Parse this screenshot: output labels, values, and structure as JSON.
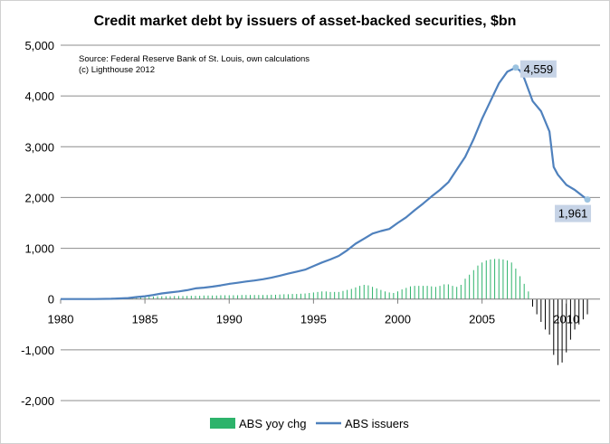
{
  "chart_data": {
    "type": "line",
    "title": "Credit market debt by issuers of asset-backed securities, $bn",
    "notes": [
      "Source: Federal Reserve Bank of St. Louis, own calculations",
      "(c) Lighthouse 2012"
    ],
    "xlabel": "",
    "ylabel": "",
    "xlim": [
      1980,
      2012
    ],
    "ylim": [
      -2000,
      5000
    ],
    "x_ticks": [
      "1980",
      "1985",
      "1990",
      "1995",
      "2000",
      "2005",
      "2010"
    ],
    "y_ticks": [
      "5,000",
      "4,000",
      "3,000",
      "2,000",
      "1,000",
      "0",
      "-1,000",
      "-2,000"
    ],
    "grid": "horizontal",
    "legend_position": "bottom",
    "colors": {
      "line": "#4f81bd",
      "bar_positive": "#2db36b",
      "bar_negative": "#000000",
      "callout_bg": "#c6d3e6",
      "marker": "#9cc3e0"
    },
    "series": [
      {
        "name": "ABS issuers",
        "type": "line",
        "x": [
          1980,
          1981,
          1982,
          1983,
          1984,
          1984.5,
          1985,
          1985.5,
          1986,
          1986.5,
          1987,
          1987.5,
          1988,
          1988.5,
          1989,
          1989.5,
          1990,
          1990.5,
          1991,
          1991.5,
          1992,
          1992.5,
          1993,
          1993.5,
          1994,
          1994.5,
          1995,
          1995.5,
          1996,
          1996.5,
          1997,
          1997.5,
          1998,
          1998.5,
          1999,
          1999.5,
          2000,
          2000.5,
          2001,
          2001.5,
          2002,
          2002.5,
          2003,
          2003.5,
          2004,
          2004.5,
          2005,
          2005.5,
          2006,
          2006.5,
          2007,
          2007.25,
          2007.5,
          2008,
          2008.5,
          2009,
          2009.25,
          2009.5,
          2010,
          2010.5,
          2011,
          2011.25
        ],
        "values": [
          0,
          0,
          0,
          5,
          20,
          40,
          55,
          80,
          110,
          130,
          150,
          175,
          210,
          225,
          245,
          270,
          300,
          320,
          345,
          365,
          390,
          420,
          460,
          500,
          540,
          580,
          650,
          720,
          780,
          850,
          960,
          1090,
          1190,
          1290,
          1340,
          1380,
          1500,
          1610,
          1750,
          1880,
          2020,
          2150,
          2300,
          2550,
          2800,
          3150,
          3550,
          3900,
          4250,
          4480,
          4559,
          4500,
          4350,
          3900,
          3700,
          3300,
          2600,
          2450,
          2250,
          2150,
          2020,
          1961
        ]
      },
      {
        "name": "ABS yoy chg",
        "type": "bar",
        "x": [
          1984.0,
          1984.25,
          1984.5,
          1984.75,
          1985.0,
          1985.25,
          1985.5,
          1985.75,
          1986.0,
          1986.25,
          1986.5,
          1986.75,
          1987.0,
          1987.25,
          1987.5,
          1987.75,
          1988.0,
          1988.25,
          1988.5,
          1988.75,
          1989.0,
          1989.25,
          1989.5,
          1989.75,
          1990.0,
          1990.25,
          1990.5,
          1990.75,
          1991.0,
          1991.25,
          1991.5,
          1991.75,
          1992.0,
          1992.25,
          1992.5,
          1992.75,
          1993.0,
          1993.25,
          1993.5,
          1993.75,
          1994.0,
          1994.25,
          1994.5,
          1994.75,
          1995.0,
          1995.25,
          1995.5,
          1995.75,
          1996.0,
          1996.25,
          1996.5,
          1996.75,
          1997.0,
          1997.25,
          1997.5,
          1997.75,
          1998.0,
          1998.25,
          1998.5,
          1998.75,
          1999.0,
          1999.25,
          1999.5,
          1999.75,
          2000.0,
          2000.25,
          2000.5,
          2000.75,
          2001.0,
          2001.25,
          2001.5,
          2001.75,
          2002.0,
          2002.25,
          2002.5,
          2002.75,
          2003.0,
          2003.25,
          2003.5,
          2003.75,
          2004.0,
          2004.25,
          2004.5,
          2004.75,
          2005.0,
          2005.25,
          2005.5,
          2005.75,
          2006.0,
          2006.25,
          2006.5,
          2006.75,
          2007.0,
          2007.25,
          2007.5,
          2007.75,
          2008.0,
          2008.25,
          2008.5,
          2008.75,
          2009.0,
          2009.25,
          2009.5,
          2009.75,
          2010.0,
          2010.25,
          2010.5,
          2010.75,
          2011.0,
          2011.25
        ],
        "values": [
          20,
          25,
          30,
          35,
          40,
          45,
          50,
          55,
          55,
          55,
          55,
          60,
          60,
          60,
          62,
          65,
          65,
          65,
          70,
          70,
          70,
          70,
          75,
          75,
          75,
          75,
          75,
          80,
          80,
          80,
          80,
          80,
          80,
          80,
          85,
          85,
          90,
          95,
          95,
          100,
          100,
          105,
          110,
          120,
          130,
          140,
          150,
          150,
          140,
          140,
          140,
          160,
          180,
          200,
          230,
          260,
          280,
          270,
          240,
          210,
          180,
          150,
          130,
          120,
          150,
          190,
          220,
          250,
          260,
          260,
          260,
          260,
          250,
          240,
          260,
          290,
          290,
          260,
          240,
          280,
          400,
          480,
          570,
          660,
          720,
          760,
          780,
          790,
          790,
          780,
          760,
          720,
          600,
          450,
          300,
          150,
          -150,
          -300,
          -450,
          -600,
          -700,
          -1100,
          -1300,
          -1250,
          -1050,
          -800,
          -600,
          -500,
          -400,
          -300
        ]
      }
    ],
    "annotations": [
      {
        "label": "4,559",
        "x": 2007.0,
        "y": 4559
      },
      {
        "label": "1,961",
        "x": 2011.25,
        "y": 1961
      }
    ]
  }
}
